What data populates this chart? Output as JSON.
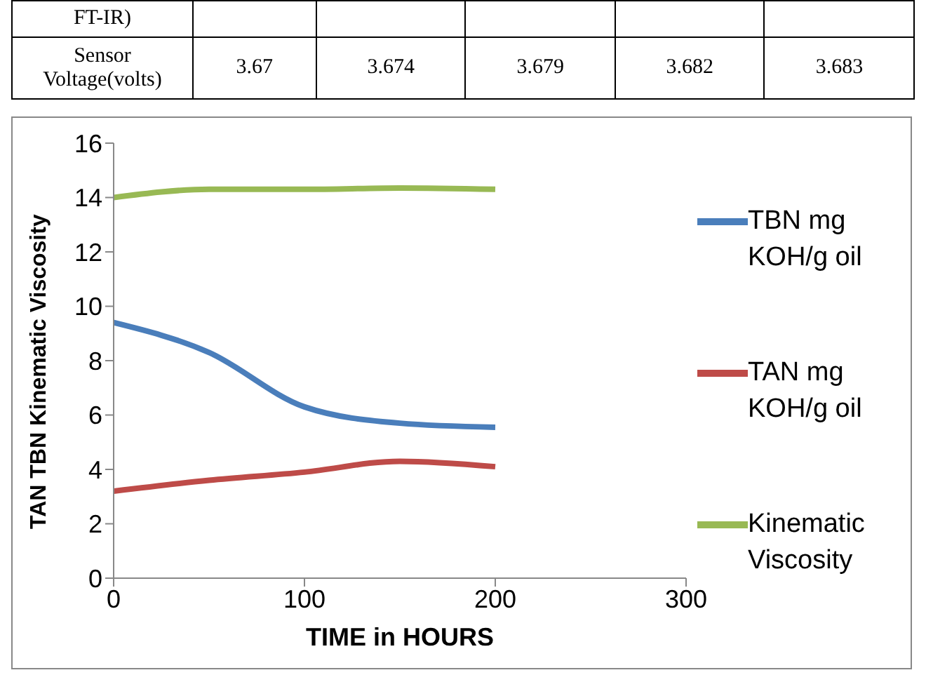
{
  "chart_data": {
    "type": "line",
    "xlabel": "TIME in HOURS",
    "ylabel": "TAN TBN Kinematic Viscosity",
    "x": [
      0,
      50,
      100,
      150,
      200
    ],
    "series": [
      {
        "name": "TBN mg KOH/g oil",
        "color": "#4a7ebb",
        "values": [
          9.4,
          8.3,
          6.3,
          5.7,
          5.55
        ]
      },
      {
        "name": "TAN mg KOH/g oil",
        "color": "#be4b48",
        "values": [
          3.2,
          3.6,
          3.9,
          4.3,
          4.1
        ]
      },
      {
        "name": "Kinematic Viscosity",
        "color": "#98b954",
        "values": [
          14.0,
          14.3,
          14.3,
          14.35,
          14.3
        ]
      }
    ],
    "xlim": [
      0,
      300
    ],
    "xticks": [
      0,
      100,
      200,
      300
    ],
    "ylim": [
      0,
      16
    ],
    "yticks": [
      0,
      2,
      4,
      6,
      8,
      10,
      12,
      14,
      16
    ],
    "grid": false,
    "legend": "right",
    "marker": "none",
    "line_style": "solid",
    "annotations": [
      "FT-IR)",
      "Sensor Voltage(volts)",
      "3.67",
      "3.674",
      "3.679",
      "3.682",
      "3.683"
    ]
  }
}
